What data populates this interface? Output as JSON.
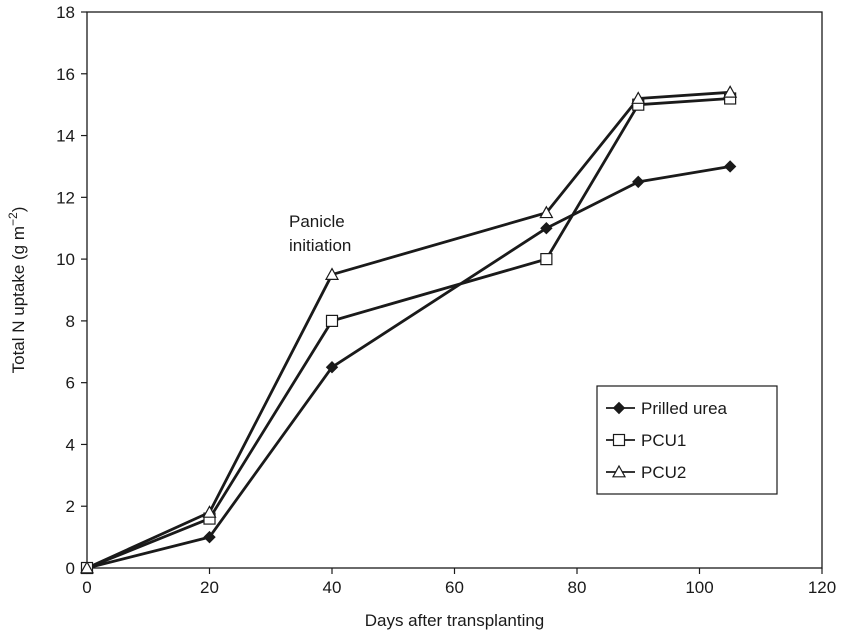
{
  "chart_data": {
    "type": "line",
    "title": "",
    "xlabel": "Days after transplanting",
    "ylabel": "Total N uptake (g m",
    "ylabel_sup": "−2",
    "ylabel_close": ")",
    "xlim": [
      0,
      120
    ],
    "ylim": [
      0,
      18
    ],
    "xticks": [
      0,
      20,
      40,
      60,
      80,
      100,
      120
    ],
    "yticks": [
      0,
      2,
      4,
      6,
      8,
      10,
      12,
      14,
      16,
      18
    ],
    "grid": false,
    "legend_position": "bottom-right",
    "annotation": {
      "lines": [
        "Panicle",
        "initiation"
      ],
      "x": 40,
      "y": 10.2
    },
    "series": [
      {
        "name": "Prilled urea",
        "marker": "diamond-filled",
        "x": [
          0,
          20,
          40,
          75,
          90,
          105
        ],
        "y": [
          0,
          1.0,
          6.5,
          11.0,
          12.5,
          13.0
        ]
      },
      {
        "name": "PCU1",
        "marker": "square-open",
        "x": [
          0,
          20,
          40,
          75,
          90,
          105
        ],
        "y": [
          0,
          1.6,
          8.0,
          10.0,
          15.0,
          15.2
        ]
      },
      {
        "name": "PCU2",
        "marker": "triangle-open",
        "x": [
          0,
          20,
          40,
          75,
          90,
          105
        ],
        "y": [
          0,
          1.8,
          9.5,
          11.5,
          15.2,
          15.4
        ]
      }
    ],
    "colors": {
      "line": "#1a1a1a",
      "background": "#ffffff"
    }
  }
}
